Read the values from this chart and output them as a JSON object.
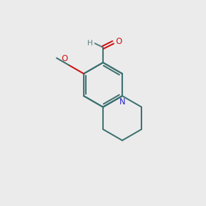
{
  "background_color": "#ebebeb",
  "bond_color": "#3d7070",
  "bond_width": 1.5,
  "N_color": "#2222cc",
  "O_color": "#cc1111",
  "H_color": "#5a8080",
  "figsize": [
    3.0,
    3.0
  ],
  "dpi": 100,
  "xlim": [
    0,
    10
  ],
  "ylim": [
    0,
    10
  ]
}
